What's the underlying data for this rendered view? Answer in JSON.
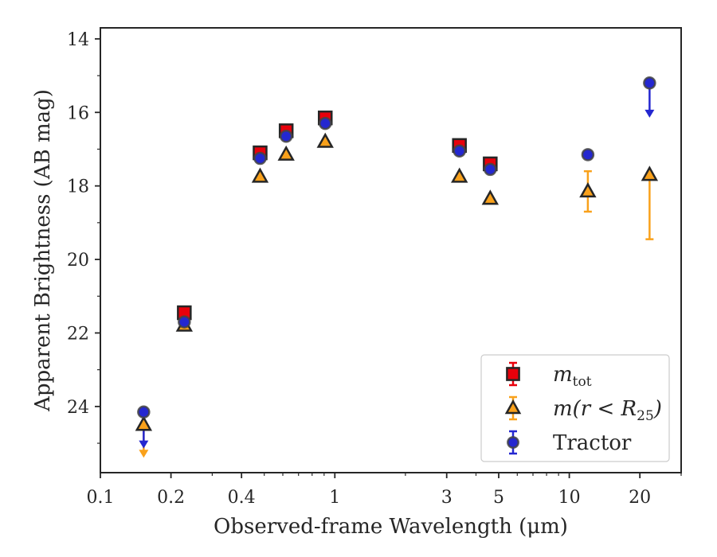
{
  "chart_data": {
    "type": "scatter",
    "xlabel": "Observed-frame Wavelength (μm)",
    "ylabel": "Apparent Brightness (AB mag)",
    "x_scale": "log",
    "xlim": [
      0.1,
      30
    ],
    "ylim": [
      25.8,
      13.7
    ],
    "y_inverted": true,
    "grid": false,
    "legend_location": "lower-right",
    "x_ticks": [
      {
        "value": 0.1,
        "label": "0.1"
      },
      {
        "value": 0.2,
        "label": "0.2"
      },
      {
        "value": 0.4,
        "label": "0.4"
      },
      {
        "value": 1,
        "label": "1"
      },
      {
        "value": 3,
        "label": "3"
      },
      {
        "value": 5,
        "label": "5"
      },
      {
        "value": 10,
        "label": "10"
      },
      {
        "value": 20,
        "label": "20"
      }
    ],
    "x_minor_ticks": [
      0.3,
      0.5,
      0.6,
      0.7,
      0.8,
      0.9,
      2,
      4,
      6,
      7,
      8,
      9,
      30
    ],
    "y_ticks": [
      {
        "value": 14,
        "label": "14"
      },
      {
        "value": 16,
        "label": "16"
      },
      {
        "value": 18,
        "label": "18"
      },
      {
        "value": 20,
        "label": "20"
      },
      {
        "value": 22,
        "label": "22"
      },
      {
        "value": 24,
        "label": "24"
      }
    ],
    "y_minor_ticks": [
      15,
      17,
      19,
      21,
      23,
      25
    ],
    "series": [
      {
        "name": "m_tot",
        "label_main": "m",
        "label_sub": "tot",
        "marker": "square",
        "color": "#e8000b",
        "points": [
          {
            "x": 0.228,
            "y": 21.45
          },
          {
            "x": 0.48,
            "y": 17.1
          },
          {
            "x": 0.62,
            "y": 16.5
          },
          {
            "x": 0.91,
            "y": 16.15
          },
          {
            "x": 3.4,
            "y": 16.9
          },
          {
            "x": 4.6,
            "y": 17.4
          }
        ]
      },
      {
        "name": "m(r<R_25)",
        "label_main": "m(r < R",
        "label_sub": "25",
        "label_end": ")",
        "marker": "triangle",
        "color": "#f9a11b",
        "points": [
          {
            "x": 0.153,
            "y": 24.5,
            "upper_limit": true,
            "limit_to": 25.35
          },
          {
            "x": 0.228,
            "y": 21.8
          },
          {
            "x": 0.48,
            "y": 17.75
          },
          {
            "x": 0.62,
            "y": 17.15
          },
          {
            "x": 0.91,
            "y": 16.8
          },
          {
            "x": 3.4,
            "y": 17.75
          },
          {
            "x": 4.6,
            "y": 18.35
          },
          {
            "x": 12.0,
            "y": 18.15,
            "err": 0.55
          },
          {
            "x": 22.0,
            "y": 17.7,
            "err_low": 1.75,
            "err_high": 0
          }
        ]
      },
      {
        "name": "Tractor",
        "marker": "circle",
        "color": "#2427d0",
        "points": [
          {
            "x": 0.153,
            "y": 24.15,
            "upper_limit": true,
            "limit_to": 25.1
          },
          {
            "x": 0.228,
            "y": 21.7
          },
          {
            "x": 0.48,
            "y": 17.25
          },
          {
            "x": 0.62,
            "y": 16.65
          },
          {
            "x": 0.91,
            "y": 16.3
          },
          {
            "x": 3.4,
            "y": 17.05
          },
          {
            "x": 4.6,
            "y": 17.55
          },
          {
            "x": 12.0,
            "y": 17.15
          },
          {
            "x": 22.0,
            "y": 15.2,
            "upper_limit": true,
            "limit_to": 16.1
          }
        ]
      }
    ]
  }
}
